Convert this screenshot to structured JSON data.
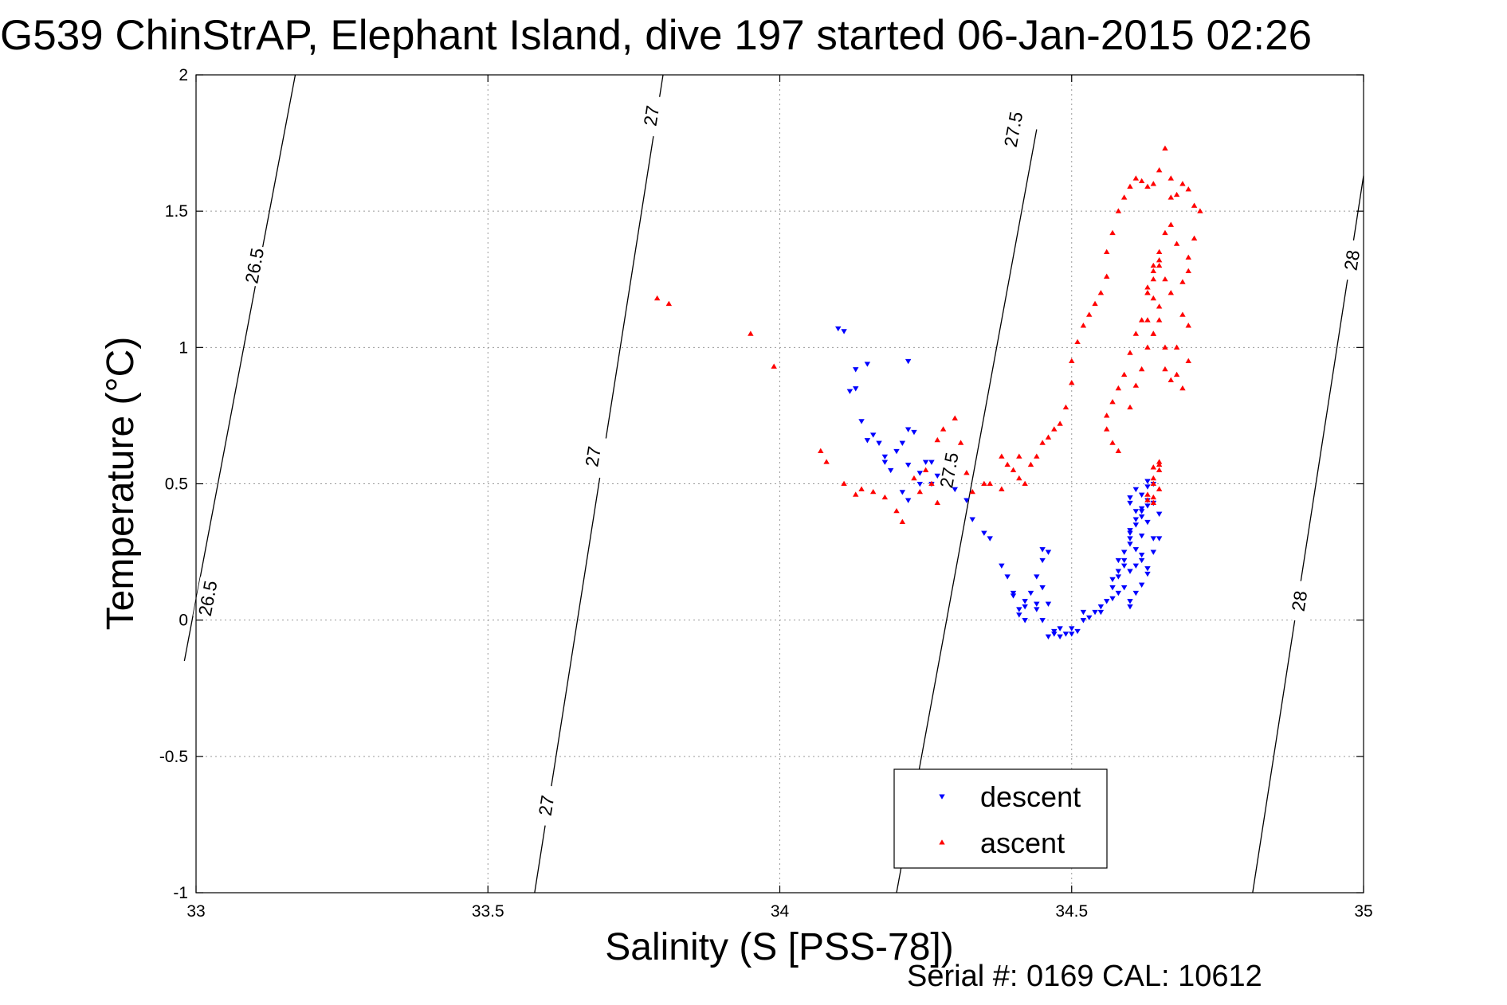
{
  "chart_data": {
    "type": "scatter",
    "title": "G539 ChinStrAP, Elephant Island, dive 197 started 06-Jan-2015 02:26",
    "xlabel": "Salinity (S [PSS-78])",
    "ylabel": "Temperature (°C)",
    "xlim": [
      33,
      35
    ],
    "ylim": [
      -1,
      2
    ],
    "x_ticks": [
      33,
      33.5,
      34,
      34.5,
      35
    ],
    "x_tick_labels": [
      "33",
      "33.5",
      "34",
      "34.5",
      "35"
    ],
    "y_ticks": [
      -1,
      -0.5,
      0,
      0.5,
      1,
      1.5,
      2
    ],
    "y_tick_labels": [
      "-1",
      "-0.5",
      "0",
      "0.5",
      "1",
      "1.5",
      "2"
    ],
    "grid": true,
    "legend_position": "bottom-center",
    "footnote": "Serial #: 0169 CAL: 10612",
    "density_contours": [
      {
        "value": "26.5",
        "points": [
          [
            33.17,
            2.0
          ],
          [
            32.98,
            -0.15
          ]
        ],
        "labels": [
          {
            "text": "26.5",
            "s": 33.1,
            "t": 1.3
          },
          {
            "text": "26.5",
            "s": 33.02,
            "t": 0.08
          }
        ]
      },
      {
        "value": "27",
        "points": [
          [
            33.8,
            2.0
          ],
          [
            33.58,
            -1.0
          ]
        ],
        "labels": [
          {
            "text": "27",
            "s": 33.78,
            "t": 1.85
          },
          {
            "text": "27",
            "s": 33.68,
            "t": 0.6
          },
          {
            "text": "27",
            "s": 33.6,
            "t": -0.68
          }
        ]
      },
      {
        "value": "27.5",
        "points": [
          [
            34.44,
            1.8
          ],
          [
            34.2,
            -1.0
          ]
        ],
        "labels": [
          {
            "text": "27.5",
            "s": 34.4,
            "t": 1.8
          },
          {
            "text": "27.5",
            "s": 34.29,
            "t": 0.55
          }
        ]
      },
      {
        "value": "28",
        "points": [
          [
            35.0,
            1.63
          ],
          [
            34.81,
            -1.0
          ]
        ],
        "labels": [
          {
            "text": "28",
            "s": 34.98,
            "t": 1.32
          },
          {
            "text": "28",
            "s": 34.89,
            "t": 0.07
          }
        ]
      }
    ],
    "series": [
      {
        "name": "descent",
        "color": "#0000ff",
        "marker": "triangle-down",
        "x": [
          34.1,
          34.11,
          34.13,
          34.15,
          34.12,
          34.13,
          34.22,
          34.14,
          34.15,
          34.16,
          34.17,
          34.18,
          34.18,
          34.19,
          34.2,
          34.21,
          34.22,
          34.23,
          34.22,
          34.24,
          34.25,
          34.26,
          34.26,
          34.24,
          34.21,
          34.22,
          34.27,
          34.3,
          34.32,
          34.33,
          34.36,
          34.35,
          34.38,
          34.39,
          34.4,
          34.4,
          34.41,
          34.42,
          34.42,
          34.41,
          34.42,
          34.43,
          34.44,
          34.45,
          34.45,
          34.46,
          34.45,
          34.46,
          34.44,
          34.44,
          34.45,
          34.46,
          34.47,
          34.48,
          34.47,
          34.48,
          34.49,
          34.5,
          34.5,
          34.51,
          34.52,
          34.53,
          34.52,
          34.54,
          34.55,
          34.55,
          34.56,
          34.57,
          34.57,
          34.58,
          34.58,
          34.59,
          34.59,
          34.6,
          34.6,
          34.61,
          34.62,
          34.63,
          34.63,
          34.62,
          34.64,
          34.64,
          34.63,
          34.6,
          34.61,
          34.62,
          34.61,
          34.6,
          34.6,
          34.59,
          34.62,
          34.63,
          34.64,
          34.65,
          34.65,
          34.64,
          34.6,
          34.58,
          34.57,
          34.58,
          34.59,
          34.6,
          34.6,
          34.61,
          34.62,
          34.63,
          34.62,
          34.61,
          34.61,
          34.62,
          34.63,
          34.64,
          34.63,
          34.62,
          34.61,
          34.6
        ],
        "y": [
          1.07,
          1.06,
          0.92,
          0.94,
          0.84,
          0.85,
          0.95,
          0.73,
          0.66,
          0.68,
          0.65,
          0.6,
          0.58,
          0.55,
          0.62,
          0.65,
          0.7,
          0.69,
          0.57,
          0.54,
          0.58,
          0.58,
          0.5,
          0.5,
          0.47,
          0.44,
          0.53,
          0.48,
          0.44,
          0.37,
          0.3,
          0.32,
          0.2,
          0.16,
          0.09,
          0.1,
          0.04,
          0.0,
          0.07,
          0.02,
          0.05,
          0.1,
          0.16,
          0.22,
          0.26,
          0.25,
          0.12,
          0.06,
          0.04,
          0.06,
          0.0,
          -0.06,
          -0.04,
          -0.03,
          -0.05,
          -0.06,
          -0.05,
          -0.05,
          -0.03,
          -0.04,
          0.0,
          0.01,
          0.03,
          0.03,
          0.05,
          0.03,
          0.07,
          0.08,
          0.15,
          0.16,
          0.22,
          0.2,
          0.25,
          0.3,
          0.33,
          0.37,
          0.41,
          0.42,
          0.44,
          0.38,
          0.43,
          0.5,
          0.51,
          0.45,
          0.48,
          0.4,
          0.35,
          0.28,
          0.32,
          0.22,
          0.24,
          0.19,
          0.25,
          0.39,
          0.3,
          0.3,
          0.18,
          0.18,
          0.12,
          0.1,
          0.12,
          0.07,
          0.05,
          0.1,
          0.13,
          0.17,
          0.22,
          0.26,
          0.2,
          0.31,
          0.36,
          0.43,
          0.49,
          0.46,
          0.4,
          0.43
        ]
      },
      {
        "name": "ascent",
        "color": "#ff0000",
        "marker": "triangle-up",
        "x": [
          33.79,
          33.81,
          33.95,
          33.99,
          34.07,
          34.08,
          34.11,
          34.13,
          34.14,
          34.16,
          34.18,
          34.2,
          34.21,
          34.23,
          34.24,
          34.25,
          34.26,
          34.27,
          34.27,
          34.28,
          34.3,
          34.31,
          34.32,
          34.33,
          34.35,
          34.36,
          34.38,
          34.38,
          34.39,
          34.4,
          34.41,
          34.41,
          34.42,
          34.43,
          34.44,
          34.45,
          34.46,
          34.47,
          34.48,
          34.49,
          34.5,
          34.5,
          34.51,
          34.52,
          34.53,
          34.54,
          34.55,
          34.56,
          34.56,
          34.57,
          34.58,
          34.59,
          34.6,
          34.61,
          34.62,
          34.63,
          34.64,
          34.65,
          34.66,
          34.67,
          34.67,
          34.68,
          34.69,
          34.7,
          34.71,
          34.72,
          34.71,
          34.7,
          34.7,
          34.69,
          34.68,
          34.67,
          34.66,
          34.65,
          34.64,
          34.63,
          34.62,
          34.61,
          34.6,
          34.59,
          34.58,
          34.57,
          34.56,
          34.56,
          34.57,
          34.58,
          34.6,
          34.61,
          34.62,
          34.63,
          34.64,
          34.65,
          34.64,
          34.63,
          34.64,
          34.65,
          34.66,
          34.66,
          34.67,
          34.68,
          34.69,
          34.7,
          34.7,
          34.69,
          34.68,
          34.67,
          34.66,
          34.65,
          34.65,
          34.64,
          34.63,
          34.63,
          34.64,
          34.65,
          34.65,
          34.64,
          34.64,
          34.65,
          34.64,
          34.65,
          34.64,
          34.63,
          34.64,
          34.63
        ],
        "y": [
          1.18,
          1.16,
          1.05,
          0.93,
          0.62,
          0.58,
          0.5,
          0.46,
          0.48,
          0.47,
          0.45,
          0.4,
          0.36,
          0.52,
          0.47,
          0.55,
          0.5,
          0.43,
          0.66,
          0.7,
          0.74,
          0.65,
          0.54,
          0.47,
          0.5,
          0.5,
          0.48,
          0.6,
          0.57,
          0.55,
          0.52,
          0.6,
          0.5,
          0.57,
          0.6,
          0.65,
          0.67,
          0.7,
          0.72,
          0.78,
          0.87,
          0.95,
          1.02,
          1.08,
          1.12,
          1.16,
          1.2,
          1.26,
          1.35,
          1.42,
          1.5,
          1.55,
          1.59,
          1.62,
          1.61,
          1.59,
          1.6,
          1.65,
          1.73,
          1.62,
          1.55,
          1.56,
          1.6,
          1.58,
          1.52,
          1.5,
          1.4,
          1.33,
          1.28,
          1.24,
          1.38,
          1.45,
          1.42,
          1.32,
          1.25,
          1.2,
          1.1,
          1.05,
          0.98,
          0.9,
          0.85,
          0.8,
          0.75,
          0.7,
          0.65,
          0.62,
          0.78,
          0.86,
          0.92,
          1.0,
          1.05,
          1.1,
          1.18,
          1.22,
          1.3,
          1.15,
          1.0,
          0.92,
          0.88,
          0.9,
          0.85,
          0.95,
          1.08,
          1.12,
          1.0,
          1.2,
          1.25,
          1.3,
          1.35,
          1.28,
          1.2,
          1.1,
          1.05,
          0.58,
          0.55,
          0.52,
          0.5,
          0.48,
          0.45,
          0.57,
          0.56,
          0.44,
          0.43,
          0.46
        ]
      }
    ]
  }
}
